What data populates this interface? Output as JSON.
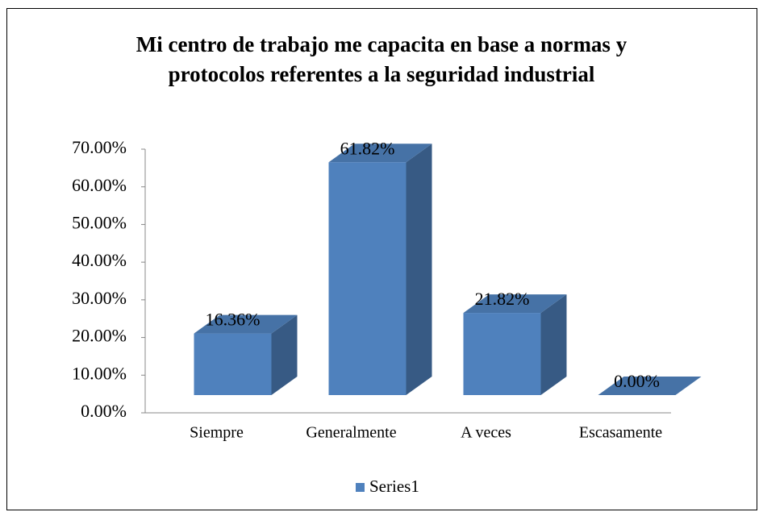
{
  "chart_data": {
    "type": "bar3d",
    "title": [
      "Mi centro de trabajo me capacita en base a normas y",
      "protocolos referentes a la seguridad industrial"
    ],
    "categories": [
      "Siempre",
      "Generalmente",
      "A veces",
      "Escasamente"
    ],
    "series": [
      {
        "name": "Series1",
        "color": "#4f81bd",
        "values": [
          16.36,
          61.82,
          21.82,
          0
        ],
        "value_labels": [
          "16.36%",
          "61.82%",
          "21.82%",
          "0.00%"
        ]
      }
    ],
    "ylim": [
      0,
      70
    ],
    "yticks": [
      {
        "value": 0,
        "label": "0.00%"
      },
      {
        "value": 10,
        "label": "10.00%"
      },
      {
        "value": 20,
        "label": "20.00%"
      },
      {
        "value": 30,
        "label": "30.00%"
      },
      {
        "value": 40,
        "label": "40.00%"
      },
      {
        "value": 50,
        "label": "50.00%"
      },
      {
        "value": 60,
        "label": "60.00%"
      },
      {
        "value": 70,
        "label": "70.00%"
      }
    ],
    "legend": "bottom"
  }
}
